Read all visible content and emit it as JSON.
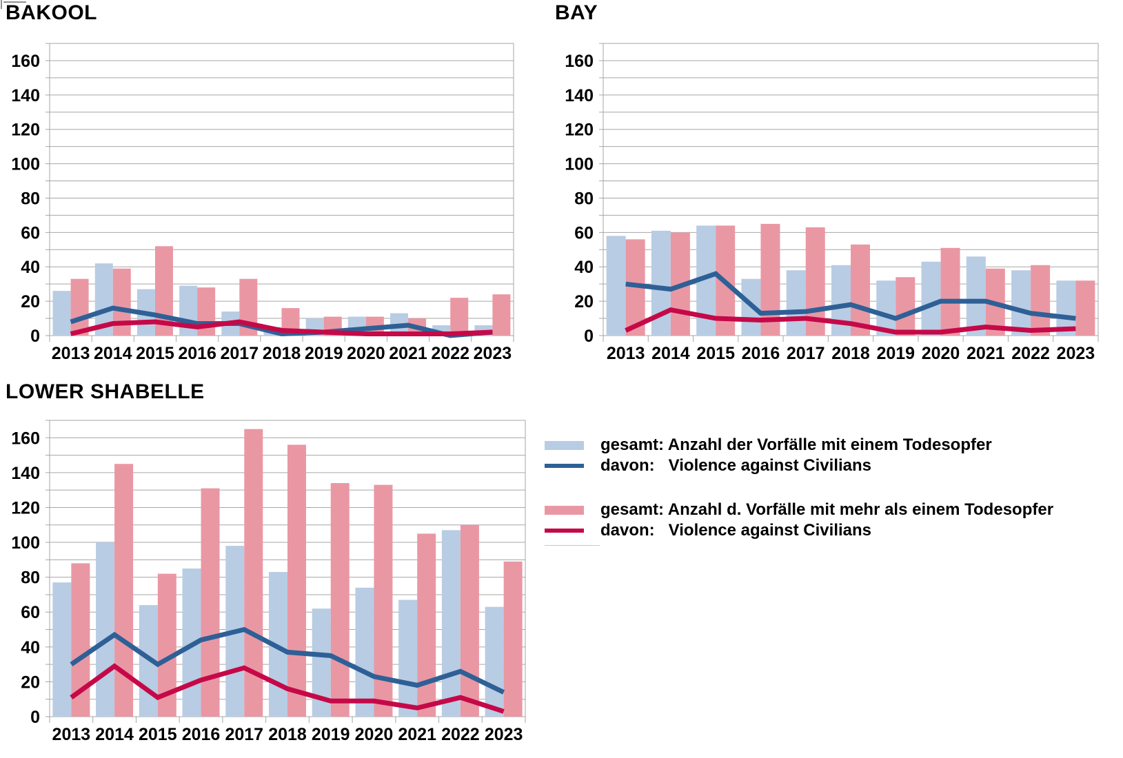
{
  "page": {
    "background": "#ffffff"
  },
  "colors": {
    "bar_single_fatality": "#b8cce4",
    "line_single_fatality": "#2e6096",
    "bar_multi_fatality": "#ea97a4",
    "line_multi_fatality": "#c50948",
    "grid": "#a6a6a6",
    "text": "#000000",
    "divider": "#c8c8c8"
  },
  "legend": {
    "items": [
      {
        "label": "gesamt: Anzahl der Vorfälle mit einem Todesopfer",
        "swatch": "bar",
        "color": "#b8cce4"
      },
      {
        "label": "davon:   Violence against Civilians",
        "swatch": "line",
        "color": "#2e6096"
      },
      {
        "label": "gesamt: Anzahl d. Vorfälle mit mehr als einem Todesopfer",
        "swatch": "bar",
        "color": "#ea97a4"
      },
      {
        "label": "davon:   Violence against Civilians",
        "swatch": "line",
        "color": "#c50948"
      }
    ]
  },
  "chart_data": [
    {
      "type": "bar+line",
      "title": "BAKOOL",
      "categories": [
        "2013",
        "2014",
        "2015",
        "2016",
        "2017",
        "2018",
        "2019",
        "2020",
        "2021",
        "2022",
        "2023"
      ],
      "ylim": [
        0,
        170
      ],
      "ytick_interval": 20,
      "grid_interval": 10,
      "grid": true,
      "legend_position": "none",
      "series": [
        {
          "name": "gesamt: Anzahl der Vorfälle mit einem Todesopfer",
          "type": "bar",
          "color": "#b8cce4",
          "values": [
            26,
            42,
            27,
            29,
            14,
            5,
            10,
            11,
            13,
            6,
            6
          ]
        },
        {
          "name": "davon: Violence against Civilians",
          "type": "line",
          "color": "#2e6096",
          "values": [
            8,
            16,
            12,
            7,
            7,
            1,
            2,
            4,
            6,
            0,
            2
          ]
        },
        {
          "name": "gesamt: Anzahl d. Vorfälle mit mehr als einem Todesopfer",
          "type": "bar",
          "color": "#ea97a4",
          "values": [
            33,
            39,
            52,
            28,
            33,
            16,
            11,
            11,
            10,
            22,
            24
          ]
        },
        {
          "name": "davon: Violence against Civilians",
          "type": "line",
          "color": "#c50948",
          "values": [
            1,
            7,
            8,
            5,
            8,
            3,
            2,
            1,
            1,
            1,
            2
          ]
        }
      ]
    },
    {
      "type": "bar+line",
      "title": "BAY",
      "categories": [
        "2013",
        "2014",
        "2015",
        "2016",
        "2017",
        "2018",
        "2019",
        "2020",
        "2021",
        "2022",
        "2023"
      ],
      "ylim": [
        0,
        170
      ],
      "ytick_interval": 20,
      "grid_interval": 10,
      "grid": true,
      "legend_position": "none",
      "series": [
        {
          "name": "gesamt: Anzahl der Vorfälle mit einem Todesopfer",
          "type": "bar",
          "color": "#b8cce4",
          "values": [
            58,
            61,
            64,
            33,
            38,
            41,
            32,
            43,
            46,
            38,
            32
          ]
        },
        {
          "name": "davon: Violence against Civilians",
          "type": "line",
          "color": "#2e6096",
          "values": [
            30,
            27,
            36,
            13,
            14,
            18,
            10,
            20,
            20,
            13,
            10
          ]
        },
        {
          "name": "gesamt: Anzahl d. Vorfälle mit mehr als einem Todesopfer",
          "type": "bar",
          "color": "#ea97a4",
          "values": [
            56,
            60,
            64,
            65,
            63,
            53,
            34,
            51,
            39,
            41,
            32
          ]
        },
        {
          "name": "davon: Violence against Civilians",
          "type": "line",
          "color": "#c50948",
          "values": [
            3,
            15,
            10,
            9,
            10,
            7,
            2,
            2,
            5,
            3,
            4
          ]
        }
      ]
    },
    {
      "type": "bar+line",
      "title": "LOWER SHABELLE",
      "categories": [
        "2013",
        "2014",
        "2015",
        "2016",
        "2017",
        "2018",
        "2019",
        "2020",
        "2021",
        "2022",
        "2023"
      ],
      "ylim": [
        0,
        170
      ],
      "ytick_interval": 20,
      "grid_interval": 10,
      "grid": true,
      "legend_position": "right",
      "series": [
        {
          "name": "gesamt: Anzahl der Vorfälle mit einem Todesopfer",
          "type": "bar",
          "color": "#b8cce4",
          "values": [
            77,
            100,
            64,
            85,
            98,
            83,
            62,
            74,
            67,
            107,
            63
          ]
        },
        {
          "name": "davon: Violence against Civilians",
          "type": "line",
          "color": "#2e6096",
          "values": [
            30,
            47,
            30,
            44,
            50,
            37,
            35,
            23,
            18,
            26,
            14
          ]
        },
        {
          "name": "gesamt: Anzahl d. Vorfälle mit mehr als einem Todesopfer",
          "type": "bar",
          "color": "#ea97a4",
          "values": [
            88,
            145,
            82,
            131,
            165,
            156,
            134,
            133,
            105,
            110,
            89
          ]
        },
        {
          "name": "davon: Violence against Civilians",
          "type": "line",
          "color": "#c50948",
          "values": [
            11,
            29,
            11,
            21,
            28,
            16,
            9,
            9,
            5,
            11,
            3
          ]
        }
      ]
    }
  ]
}
